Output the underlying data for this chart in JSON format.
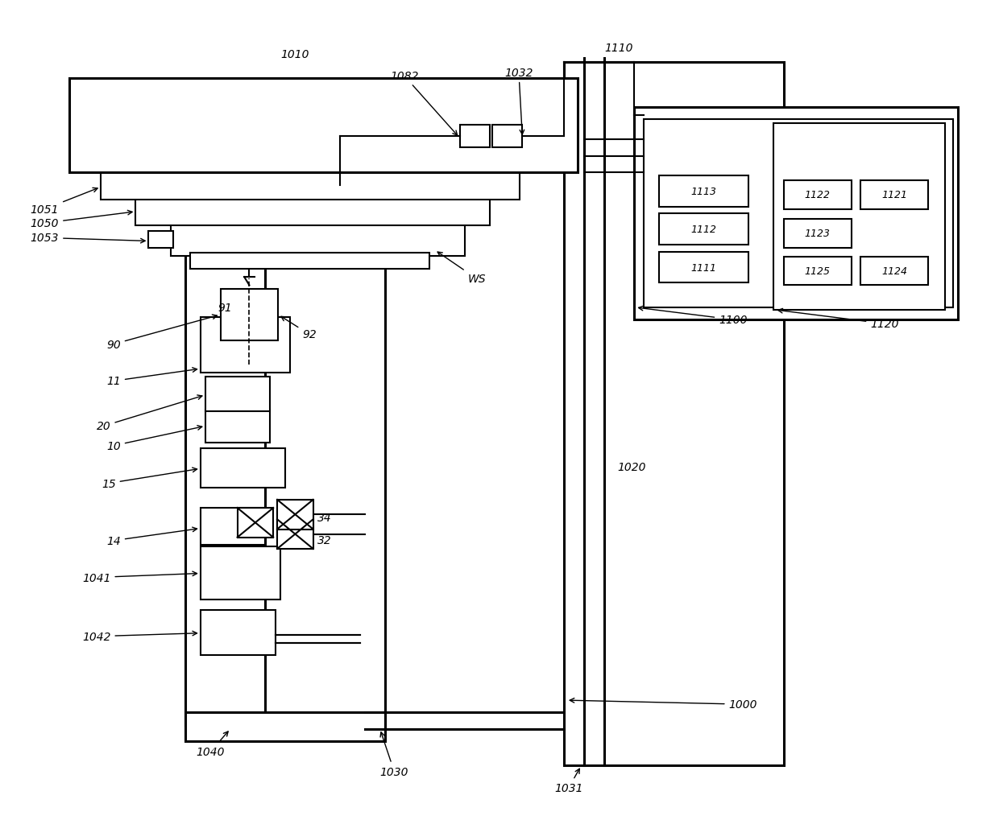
{
  "bg_color": "#ffffff",
  "line_color": "#000000",
  "fig_width": 12.4,
  "fig_height": 10.2
}
